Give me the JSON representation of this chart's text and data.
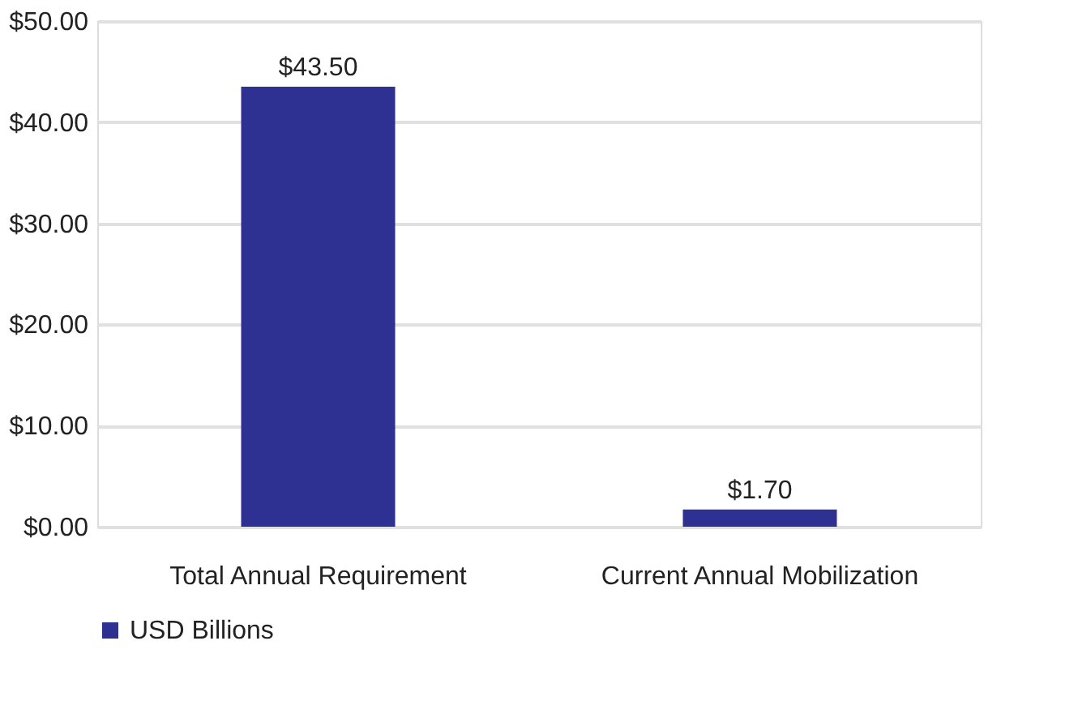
{
  "chart_data": {
    "type": "bar",
    "categories": [
      "Total Annual Requirement",
      "Current Annual Mobilization"
    ],
    "series": [
      {
        "name": "USD Billions",
        "color": "#2e3192",
        "values": [
          43.5,
          1.7
        ],
        "value_labels": [
          "$43.50",
          "$1.70"
        ]
      }
    ],
    "ylim": [
      0,
      50
    ],
    "yticks": [
      {
        "value": 0,
        "label": "$0.00"
      },
      {
        "value": 10,
        "label": "$10.00"
      },
      {
        "value": 20,
        "label": "$20.00"
      },
      {
        "value": 30,
        "label": "$30.00"
      },
      {
        "value": 40,
        "label": "$40.00"
      },
      {
        "value": 50,
        "label": "$50.00"
      }
    ],
    "grid": "y",
    "legend": "bottom"
  }
}
